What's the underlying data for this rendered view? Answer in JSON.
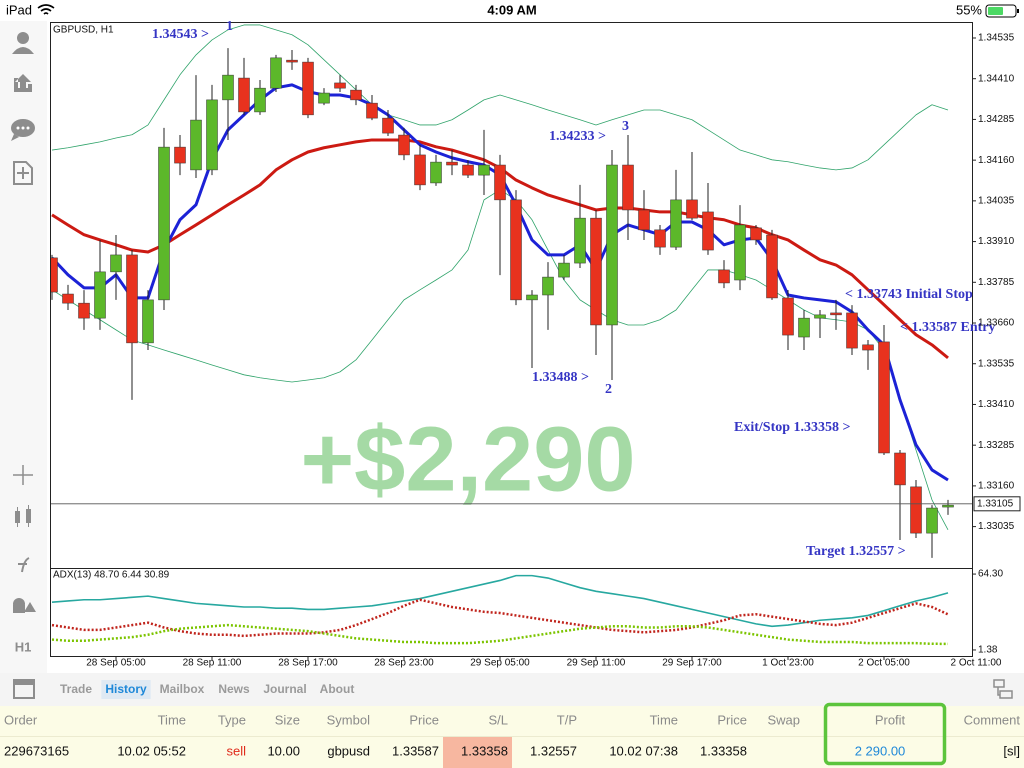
{
  "status_bar": {
    "device": "iPad",
    "time": "4:09 AM",
    "battery": "55%"
  },
  "sidebar": {
    "timeframe": "H1"
  },
  "chart_data": [
    {
      "type": "candlestick",
      "title": "GBPUSD, H1",
      "categories": [
        null,
        null,
        null,
        null,
        "28 Sep 05:00",
        null,
        null,
        null,
        null,
        null,
        "28 Sep 11:00",
        null,
        null,
        null,
        null,
        null,
        "28 Sep 17:00",
        null,
        null,
        null,
        null,
        null,
        "28 Sep 23:00",
        null,
        null,
        null,
        null,
        null,
        "29 Sep 05:00",
        null,
        null,
        null,
        null,
        null,
        "29 Sep 11:00",
        null,
        null,
        null,
        null,
        null,
        "29 Sep 17:00",
        null,
        null,
        null,
        null,
        null,
        "1 Oct 23:00",
        null,
        null,
        null,
        null,
        null,
        "2 Oct 05:00",
        null,
        null,
        null,
        null
      ],
      "x_edge_label": "2 Oct 11:00",
      "open": [
        1.3386,
        1.33749,
        1.33721,
        1.33675,
        1.33817,
        1.33869,
        1.33599,
        1.33731,
        1.342,
        1.3413,
        1.3413,
        1.34345,
        1.34412,
        1.34308,
        1.34381,
        1.34467,
        1.34461,
        1.34335,
        1.34397,
        1.34375,
        1.34335,
        1.34289,
        1.34237,
        1.34176,
        1.3409,
        1.34154,
        1.34145,
        1.34114,
        1.34145,
        1.34038,
        1.33731,
        1.33746,
        1.33801,
        1.33844,
        1.33982,
        1.33654,
        1.34145,
        1.34007,
        1.33946,
        1.33893,
        1.34038,
        1.34001,
        1.33823,
        1.33792,
        1.33952,
        1.3393,
        1.33737,
        1.33617,
        1.33675,
        1.33691,
        1.33691,
        1.33593,
        1.33602,
        1.33261,
        1.33157,
        1.33015,
        1.33095
      ],
      "high": [
        1.33869,
        1.33777,
        1.33761,
        1.33915,
        1.3393,
        1.33884,
        1.33761,
        1.34259,
        1.34237,
        1.34421,
        1.34391,
        1.34504,
        1.34474,
        1.34406,
        1.34483,
        1.34498,
        1.34474,
        1.34381,
        1.34421,
        1.34391,
        1.3436,
        1.34314,
        1.34259,
        1.34207,
        1.34176,
        1.34191,
        1.3416,
        1.34253,
        1.34176,
        1.34068,
        1.33761,
        1.33847,
        1.33869,
        1.34084,
        1.34007,
        1.34191,
        1.34237,
        1.34068,
        1.33961,
        1.3413,
        1.34185,
        1.3409,
        1.33853,
        1.34022,
        1.33961,
        1.33946,
        1.33761,
        1.337,
        1.337,
        1.33731,
        1.33715,
        1.33608,
        1.33654,
        1.3327,
        1.33178,
        1.33101,
        1.33117
      ],
      "low": [
        1.33731,
        1.337,
        1.33639,
        1.33639,
        1.33731,
        1.33424,
        1.33577,
        1.337,
        1.34114,
        1.34105,
        1.34114,
        1.34222,
        1.34299,
        1.34299,
        1.34369,
        1.34437,
        1.34289,
        1.34329,
        1.34369,
        1.34329,
        1.34283,
        1.34234,
        1.3416,
        1.34068,
        1.34081,
        1.34114,
        1.34105,
        1.34053,
        1.33807,
        1.33715,
        1.33522,
        1.33639,
        1.33792,
        1.33829,
        1.33562,
        1.33485,
        1.33915,
        1.33915,
        1.33869,
        1.33884,
        1.33976,
        1.33869,
        1.33767,
        1.33761,
        1.339,
        1.33731,
        1.33577,
        1.33577,
        1.33614,
        1.33639,
        1.33562,
        1.33516,
        1.33255,
        1.32994,
        1.33,
        1.32939,
        1.33071
      ],
      "close": [
        1.33755,
        1.33721,
        1.33675,
        1.33817,
        1.33869,
        1.33599,
        1.33731,
        1.342,
        1.34151,
        1.34283,
        1.34345,
        1.34421,
        1.34308,
        1.34381,
        1.34474,
        1.34461,
        1.34299,
        1.34366,
        1.34381,
        1.34345,
        1.34289,
        1.34243,
        1.34176,
        1.34084,
        1.34154,
        1.34145,
        1.34114,
        1.34145,
        1.34038,
        1.33731,
        1.33746,
        1.33801,
        1.33844,
        1.33982,
        1.33654,
        1.34145,
        1.34007,
        1.33946,
        1.33893,
        1.34038,
        1.33982,
        1.33884,
        1.33783,
        1.33961,
        1.33915,
        1.33737,
        1.33623,
        1.33675,
        1.33685,
        1.33685,
        1.33583,
        1.33577,
        1.33261,
        1.33163,
        1.33015,
        1.33092,
        1.33101
      ],
      "up_color": "#5cb82a",
      "down_color": "#e8321e",
      "lines": [
        {
          "color": "#2fa36a",
          "width": 0.8,
          "values": [
            1.34191,
            1.34198,
            1.34207,
            1.34216,
            1.34228,
            1.34238,
            1.34268,
            1.34345,
            1.34422,
            1.34483,
            1.34529,
            1.3456,
            1.34575,
            1.34575,
            1.3456,
            1.34545,
            1.34514,
            1.34468,
            1.34422,
            1.34376,
            1.3433,
            1.34299,
            1.34284,
            1.34268,
            1.34268,
            1.34284,
            1.34314,
            1.34345,
            1.3436,
            1.34345,
            1.3433,
            1.34314,
            1.34299,
            1.34284,
            1.34268,
            1.34284,
            1.34299,
            1.34314,
            1.34314,
            1.34299,
            1.34284,
            1.34253,
            1.34222,
            1.34191,
            1.34176,
            1.34161,
            1.34155,
            1.34145,
            1.34136,
            1.3413,
            1.34136,
            1.34161,
            1.34207,
            1.34253,
            1.34299,
            1.3433,
            1.34314
          ]
        },
        {
          "color": "#2fa36a",
          "width": 0.8,
          "values": [
            1.33762,
            1.33731,
            1.337,
            1.3367,
            1.33639,
            1.33608,
            1.33593,
            1.33577,
            1.33562,
            1.33547,
            1.33531,
            1.33516,
            1.33501,
            1.33492,
            1.33485,
            1.33479,
            1.33485,
            1.33492,
            1.3351,
            1.33547,
            1.33608,
            1.3367,
            1.33731,
            1.33762,
            1.33792,
            1.33823,
            1.33884,
            1.34038,
            1.34069,
            1.34038,
            1.33977,
            1.33884,
            1.33792,
            1.33731,
            1.337,
            1.3367,
            1.33654,
            1.33654,
            1.3367,
            1.337,
            1.33762,
            1.33823,
            1.33823,
            1.33808,
            1.33792,
            1.33762,
            1.33731,
            1.337,
            1.33676,
            1.3367,
            1.33663,
            1.33639,
            1.33577,
            1.33424,
            1.3327,
            1.33117,
            1.33025
          ]
        },
        {
          "color": "#cc1a12",
          "width": 3,
          "values": [
            1.33992,
            1.33961,
            1.33931,
            1.33915,
            1.339,
            1.33884,
            1.33878,
            1.339,
            1.33931,
            1.33961,
            1.33992,
            1.34023,
            1.34053,
            1.34084,
            1.3413,
            1.34161,
            1.34185,
            1.34198,
            1.34207,
            1.34216,
            1.34222,
            1.34222,
            1.34222,
            1.34216,
            1.34201,
            1.34191,
            1.34176,
            1.34161,
            1.34136,
            1.34099,
            1.34075,
            1.34053,
            1.34038,
            1.34023,
            1.34007,
            1.34013,
            1.34013,
            1.34007,
            1.34001,
            1.34001,
            1.33992,
            1.33983,
            1.33977,
            1.33961,
            1.33952,
            1.33931,
            1.33915,
            1.33884,
            1.33854,
            1.33838,
            1.33808,
            1.33762,
            1.33716,
            1.3367,
            1.33624,
            1.33593,
            1.33553
          ]
        },
        {
          "color": "#1c22d6",
          "width": 3,
          "values": [
            1.3386,
            1.33808,
            1.33768,
            1.33768,
            1.33808,
            1.33737,
            1.33737,
            1.33884,
            1.33977,
            1.34023,
            1.34161,
            1.34253,
            1.34299,
            1.34345,
            1.34382,
            1.34391,
            1.3437,
            1.3436,
            1.3436,
            1.34351,
            1.3433,
            1.34299,
            1.34253,
            1.34207,
            1.34185,
            1.34167,
            1.34155,
            1.34145,
            1.34115,
            1.34023,
            1.33915,
            1.33869,
            1.33869,
            1.339,
            1.33823,
            1.33931,
            1.33961,
            1.33946,
            1.33931,
            1.3397,
            1.3397,
            1.33946,
            1.339,
            1.33915,
            1.33921,
            1.33854,
            1.33746,
            1.33737,
            1.33731,
            1.33725,
            1.33694,
            1.33639,
            1.33593,
            1.33424,
            1.33286,
            1.33209,
            1.33178
          ]
        }
      ],
      "current_price": 1.33105,
      "ylim": [
        1.32911,
        1.34581
      ],
      "yticks": [
        1.34535,
        {
          "value": 1.3441,
          "label": "1.34410"
        },
        1.34285,
        {
          "value": 1.3416,
          "label": "1.34160"
        },
        1.34035,
        {
          "value": 1.3391,
          "label": "1.33910"
        },
        1.33785,
        {
          "value": 1.3366,
          "label": "1.33660"
        },
        1.33535,
        {
          "value": 1.3341,
          "label": "1.33410"
        },
        1.33285,
        {
          "value": 1.3316,
          "label": "1.33160"
        },
        1.33035
      ],
      "annotations": [
        "1.34543 >",
        "1",
        "1.34233 >",
        "3",
        "1.33488 >",
        "2",
        "< 1.33743 Initial Stop",
        "< 1.33587 Entry",
        "Exit/Stop 1.33358 >",
        "Target 1.32557 >"
      ],
      "profit_overlay": "+$2,290"
    },
    {
      "type": "line",
      "title": "ADX(13) 48.70 6.44 30.89",
      "ylim": [
        -2.8,
        68.5
      ],
      "yticks": [
        {
          "value": 64.3,
          "label": "64.30"
        },
        1.38
      ],
      "series": [
        {
          "color": "#27a8a0",
          "dash": "solid",
          "values": [
            41,
            42,
            43,
            43,
            44,
            45,
            46,
            44,
            42,
            40,
            39,
            38,
            37,
            37,
            36,
            36,
            35,
            35,
            36,
            37,
            38,
            40,
            42,
            44,
            47,
            50,
            53,
            56,
            59,
            63,
            63,
            61,
            57,
            53,
            50,
            48,
            46,
            44,
            41,
            38,
            35,
            32,
            29,
            26,
            23,
            21,
            22,
            24,
            26,
            27,
            28,
            30,
            34,
            38,
            42,
            45,
            48.7
          ]
        },
        {
          "color": "#c0241c",
          "dash": "dotted",
          "values": [
            22,
            20,
            18,
            18,
            20,
            22,
            24,
            20,
            17,
            15,
            14,
            14,
            13,
            14,
            15,
            15,
            15,
            16,
            18,
            22,
            27,
            32,
            38,
            43,
            40,
            37,
            35,
            33,
            32,
            30,
            28,
            26,
            24,
            22,
            20,
            18,
            17,
            16,
            17,
            18,
            20,
            23,
            26,
            30,
            31,
            29,
            27,
            25,
            23,
            22,
            24,
            28,
            32,
            36,
            40,
            37,
            30.89
          ]
        },
        {
          "color": "#7cc400",
          "dash": "dotted",
          "values": [
            10,
            9,
            9,
            10,
            11,
            12,
            14,
            17,
            19,
            20,
            21,
            22,
            21,
            20,
            19,
            18,
            17,
            15,
            13,
            11,
            10,
            9,
            8,
            8,
            7,
            7,
            7,
            8,
            9,
            11,
            13,
            15,
            17,
            19,
            20,
            21,
            21,
            20,
            20,
            21,
            21,
            20,
            18,
            16,
            14,
            12,
            10,
            9,
            8,
            8,
            8,
            7,
            7,
            7,
            7,
            6.5,
            6.44
          ]
        }
      ]
    }
  ],
  "tabs": {
    "items": [
      "Trade",
      "History",
      "Mailbox",
      "News",
      "Journal",
      "About"
    ],
    "active": 1
  },
  "table": {
    "columns": [
      "Order",
      "Time",
      "Type",
      "Size",
      "Symbol",
      "Price",
      "S/L",
      "T/P",
      "Time",
      "Price",
      "Swap",
      "Profit",
      "Comment"
    ],
    "rows": [
      [
        "229673165",
        "10.02 05:52",
        "sell",
        "10.00",
        "gbpusd",
        "1.33587",
        "1.33358",
        "1.32557",
        "10.02 07:38",
        "1.33358",
        null,
        "2 290.00",
        "[sl]"
      ]
    ]
  }
}
